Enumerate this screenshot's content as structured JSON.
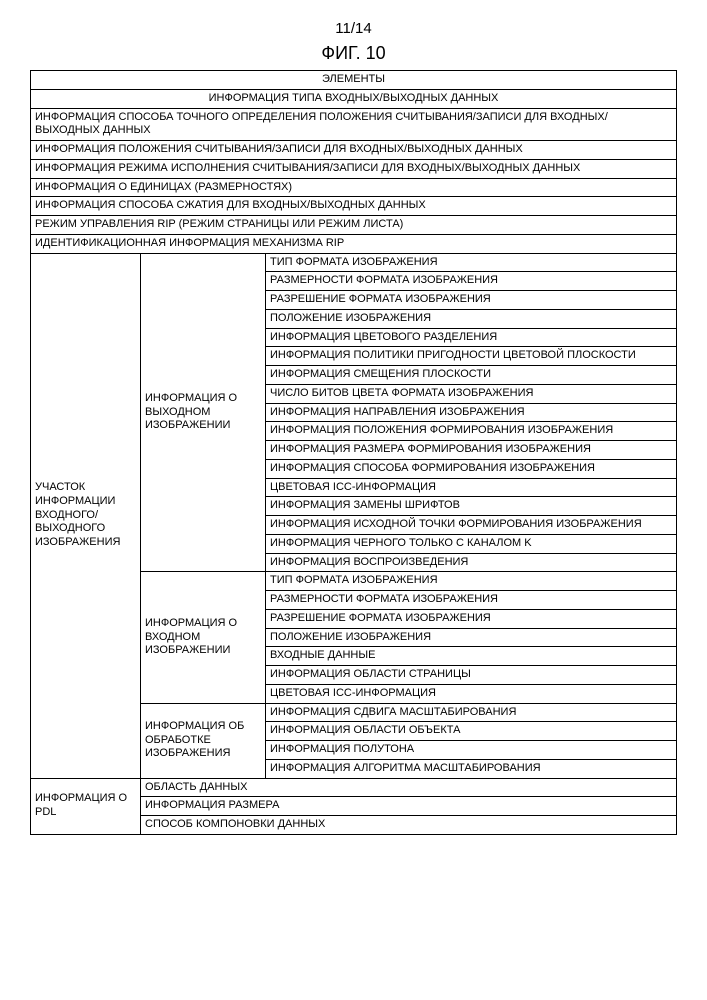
{
  "page_number": "11/14",
  "figure_title": "ФИГ. 10",
  "header": "ЭЛЕМЕНТЫ",
  "io_header": "ИНФОРМАЦИЯ ТИПА ВХОДНЫХ/ВЫХОДНЫХ ДАННЫХ",
  "full_rows": [
    "ИНФОРМАЦИЯ СПОСОБА ТОЧНОГО ОПРЕДЕЛЕНИЯ ПОЛОЖЕНИЯ СЧИТЫВАНИЯ/ЗАПИСИ ДЛЯ ВХОДНЫХ/ВЫХОДНЫХ ДАННЫХ",
    "ИНФОРМАЦИЯ ПОЛОЖЕНИЯ СЧИТЫВАНИЯ/ЗАПИСИ ДЛЯ ВХОДНЫХ/ВЫХОДНЫХ ДАННЫХ",
    "ИНФОРМАЦИЯ РЕЖИМА ИСПОЛНЕНИЯ СЧИТЫВАНИЯ/ЗАПИСИ ДЛЯ ВХОДНЫХ/ВЫХОДНЫХ ДАННЫХ",
    "ИНФОРМАЦИЯ О ЕДИНИЦАХ (РАЗМЕРНОСТЯХ)",
    "ИНФОРМАЦИЯ СПОСОБА СЖАТИЯ ДЛЯ ВХОДНЫХ/ВЫХОДНЫХ ДАННЫХ",
    "РЕЖИМ УПРАВЛЕНИЯ RIP (РЕЖИМ СТРАНИЦЫ ИЛИ РЕЖИМ ЛИСТА)",
    "ИДЕНТИФИКАЦИОННАЯ ИНФОРМАЦИЯ МЕХАНИЗМА RIP"
  ],
  "col1_io_image": "УЧАСТОК ИНФОРМАЦИИ ВХОДНОГО/ВЫХОДНОГО ИЗОБРАЖЕНИЯ",
  "col2_output": "ИНФОРМАЦИЯ О ВЫХОДНОМ ИЗОБРАЖЕНИИ",
  "output_rows": [
    "ТИП ФОРМАТА ИЗОБРАЖЕНИЯ",
    "РАЗМЕРНОСТИ ФОРМАТА ИЗОБРАЖЕНИЯ",
    "РАЗРЕШЕНИЕ ФОРМАТА ИЗОБРАЖЕНИЯ",
    "ПОЛОЖЕНИЕ ИЗОБРАЖЕНИЯ",
    "ИНФОРМАЦИЯ ЦВЕТОВОГО РАЗДЕЛЕНИЯ",
    "ИНФОРМАЦИЯ ПОЛИТИКИ ПРИГОДНОСТИ ЦВЕТОВОЙ ПЛОСКОСТИ",
    "ИНФОРМАЦИЯ СМЕЩЕНИЯ ПЛОСКОСТИ",
    "ЧИСЛО БИТОВ ЦВЕТА ФОРМАТА ИЗОБРАЖЕНИЯ",
    "ИНФОРМАЦИЯ НАПРАВЛЕНИЯ ИЗОБРАЖЕНИЯ",
    "ИНФОРМАЦИЯ ПОЛОЖЕНИЯ ФОРМИРОВАНИЯ ИЗОБРАЖЕНИЯ",
    "ИНФОРМАЦИЯ РАЗМЕРА ФОРМИРОВАНИЯ ИЗОБРАЖЕНИЯ",
    "ИНФОРМАЦИЯ СПОСОБА ФОРМИРОВАНИЯ ИЗОБРАЖЕНИЯ",
    "ЦВЕТОВАЯ ICC-ИНФОРМАЦИЯ",
    "ИНФОРМАЦИЯ ЗАМЕНЫ ШРИФТОВ",
    "ИНФОРМАЦИЯ ИСХОДНОЙ ТОЧКИ ФОРМИРОВАНИЯ ИЗОБРАЖЕНИЯ",
    "ИНФОРМАЦИЯ ЧЕРНОГО ТОЛЬКО С КАНАЛОМ K",
    "ИНФОРМАЦИЯ ВОСПРОИЗВЕДЕНИЯ"
  ],
  "col2_input": "ИНФОРМАЦИЯ О ВХОДНОМ ИЗОБРАЖЕНИИ",
  "input_rows": [
    "ТИП ФОРМАТА ИЗОБРАЖЕНИЯ",
    "РАЗМЕРНОСТИ ФОРМАТА ИЗОБРАЖЕНИЯ",
    "РАЗРЕШЕНИЕ ФОРМАТА ИЗОБРАЖЕНИЯ",
    "ПОЛОЖЕНИЕ ИЗОБРАЖЕНИЯ",
    "ВХОДНЫЕ ДАННЫЕ",
    "ИНФОРМАЦИЯ ОБЛАСТИ СТРАНИЦЫ",
    "ЦВЕТОВАЯ ICC-ИНФОРМАЦИЯ"
  ],
  "col2_processing": "ИНФОРМАЦИЯ ОБ ОБРАБОТКЕ ИЗОБРАЖЕНИЯ",
  "processing_rows": [
    "ИНФОРМАЦИЯ СДВИГА МАСШТАБИРОВАНИЯ",
    "ИНФОРМАЦИЯ ОБЛАСТИ ОБЪЕКТА",
    "ИНФОРМАЦИЯ ПОЛУТОНА",
    "ИНФОРМАЦИЯ АЛГОРИТМА МАСШТАБИРОВАНИЯ"
  ],
  "col1_pdl": "ИНФОРМАЦИЯ О PDL",
  "pdl_rows": [
    "ОБЛАСТЬ ДАННЫХ",
    "ИНФОРМАЦИЯ РАЗМЕРА",
    "СПОСОБ КОМПОНОВКИ ДАННЫХ"
  ]
}
